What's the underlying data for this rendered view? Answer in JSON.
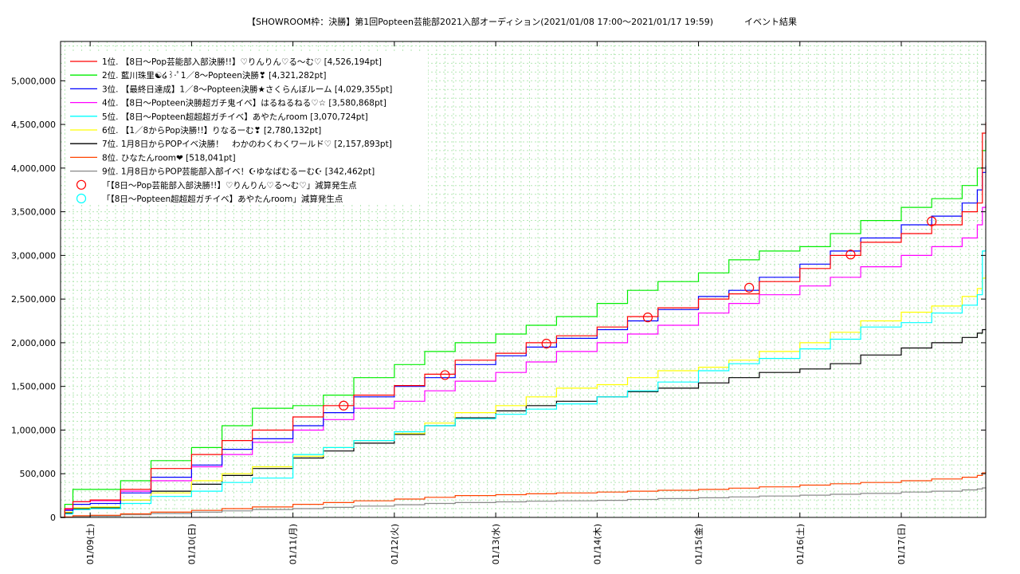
{
  "chart_data": {
    "type": "line",
    "title": "【SHOWROOM枠：決勝】第1回Popteen芸能部2021入部オーディション(2021/01/08 17:00～2021/01/17 19:59)",
    "title_suffix": "イベント結果",
    "xlabel": "",
    "ylabel": "",
    "ylim": [
      0,
      5450000
    ],
    "y_ticks": [
      "0",
      "500,000",
      "1,000,000",
      "1,500,000",
      "2,000,000",
      "2,500,000",
      "3,000,000",
      "3,500,000",
      "4,000,000",
      "4,500,000",
      "5,000,000"
    ],
    "y_tick_values": [
      0,
      500000,
      1000000,
      1500000,
      2000000,
      2500000,
      3000000,
      3500000,
      4000000,
      4500000,
      5000000
    ],
    "x_range_days": [
      8.708,
      17.833
    ],
    "x_ticks": [
      "01/09(土)",
      "01/10(日)",
      "01/11(月)",
      "01/12(火)",
      "01/13(水)",
      "01/14(木)",
      "01/15(金)",
      "01/16(土)",
      "01/17(日)"
    ],
    "x_tick_days": [
      9.0,
      10.0,
      11.0,
      12.0,
      13.0,
      14.0,
      15.0,
      16.0,
      17.0
    ],
    "grid": true,
    "legend_position": "top-left",
    "series": [
      {
        "name": "1位. 【8日～Pop芸能部入部決勝!!】♡りんりん♡る～む♡ [4,526,194pt]",
        "color": "#ff0000",
        "x": [
          8.708,
          8.75,
          8.83,
          9.0,
          9.3,
          9.6,
          10.0,
          10.3,
          10.6,
          11.0,
          11.3,
          11.6,
          12.0,
          12.3,
          12.6,
          13.0,
          13.3,
          13.6,
          14.0,
          14.3,
          14.6,
          15.0,
          15.3,
          15.6,
          16.0,
          16.3,
          16.6,
          17.0,
          17.3,
          17.6,
          17.75,
          17.8,
          17.833
        ],
        "values": [
          0,
          100000,
          180000,
          200000,
          320000,
          560000,
          720000,
          880000,
          1000000,
          1150000,
          1280000,
          1400000,
          1510000,
          1640000,
          1800000,
          1880000,
          2000000,
          2080000,
          2180000,
          2300000,
          2400000,
          2500000,
          2560000,
          2700000,
          2850000,
          3000000,
          3150000,
          3250000,
          3350000,
          3500000,
          3600000,
          4400000,
          4526194
        ]
      },
      {
        "name": "2位. 藍川珠里☯໒꒱·ﾟ1／8～Popteen決勝❣ [4,321,282pt]",
        "color": "#00ee00",
        "x": [
          8.708,
          8.75,
          8.83,
          9.0,
          9.3,
          9.6,
          10.0,
          10.3,
          10.6,
          11.0,
          11.3,
          11.6,
          12.0,
          12.3,
          12.6,
          13.0,
          13.3,
          13.6,
          14.0,
          14.3,
          14.6,
          15.0,
          15.3,
          15.6,
          16.0,
          16.3,
          16.6,
          17.0,
          17.3,
          17.6,
          17.75,
          17.8,
          17.833
        ],
        "values": [
          0,
          150000,
          320000,
          320000,
          420000,
          650000,
          800000,
          1050000,
          1250000,
          1280000,
          1400000,
          1600000,
          1750000,
          1900000,
          2000000,
          2100000,
          2200000,
          2300000,
          2450000,
          2600000,
          2700000,
          2800000,
          2950000,
          3050000,
          3100000,
          3250000,
          3400000,
          3550000,
          3650000,
          3800000,
          4000000,
          4200000,
          4321282
        ]
      },
      {
        "name": "3位. 【最終日達成】1／8～Popteen決勝★さくらんぼルーム [4,029,355pt]",
        "color": "#0000ff",
        "x": [
          8.708,
          8.75,
          8.83,
          9.0,
          9.3,
          9.6,
          10.0,
          10.3,
          10.6,
          11.0,
          11.3,
          11.6,
          12.0,
          12.3,
          12.6,
          13.0,
          13.3,
          13.6,
          14.0,
          14.3,
          14.6,
          15.0,
          15.3,
          15.6,
          16.0,
          16.3,
          16.6,
          17.0,
          17.3,
          17.6,
          17.75,
          17.8,
          17.833
        ],
        "values": [
          0,
          80000,
          150000,
          160000,
          280000,
          460000,
          600000,
          780000,
          900000,
          1050000,
          1200000,
          1380000,
          1500000,
          1600000,
          1750000,
          1850000,
          1950000,
          2050000,
          2150000,
          2250000,
          2380000,
          2530000,
          2600000,
          2750000,
          2900000,
          3050000,
          3200000,
          3350000,
          3450000,
          3600000,
          3750000,
          3950000,
          4029355
        ]
      },
      {
        "name": "4位. 【8日～Popteen決勝超ガチ鬼イベ】はるねるねる♡☆ [3,580,868pt]",
        "color": "#ff00ff",
        "x": [
          8.708,
          8.75,
          8.83,
          9.0,
          9.3,
          9.6,
          10.0,
          10.3,
          10.6,
          11.0,
          11.3,
          11.6,
          12.0,
          12.3,
          12.6,
          13.0,
          13.3,
          13.6,
          14.0,
          14.3,
          14.6,
          15.0,
          15.3,
          15.6,
          16.0,
          16.3,
          16.6,
          17.0,
          17.3,
          17.6,
          17.75,
          17.8,
          17.833
        ],
        "values": [
          0,
          90000,
          180000,
          190000,
          300000,
          420000,
          580000,
          720000,
          860000,
          1000000,
          1120000,
          1250000,
          1330000,
          1450000,
          1560000,
          1660000,
          1780000,
          1900000,
          2000000,
          2100000,
          2200000,
          2340000,
          2450000,
          2550000,
          2650000,
          2750000,
          2870000,
          3000000,
          3100000,
          3200000,
          3350000,
          3550000,
          3580868
        ]
      },
      {
        "name": "5位. 【8日～Popteen超超超ガチイベ】あやたんroom [3,070,724pt]",
        "color": "#00ffff",
        "x": [
          8.708,
          8.75,
          8.83,
          9.0,
          9.3,
          9.6,
          10.0,
          10.3,
          10.6,
          11.0,
          11.3,
          11.6,
          12.0,
          12.3,
          12.6,
          13.0,
          13.3,
          13.6,
          14.0,
          14.3,
          14.6,
          15.0,
          15.3,
          15.6,
          16.0,
          16.3,
          16.6,
          17.0,
          17.3,
          17.6,
          17.75,
          17.8,
          17.833
        ],
        "values": [
          0,
          40000,
          90000,
          100000,
          160000,
          240000,
          300000,
          400000,
          450000,
          720000,
          800000,
          880000,
          980000,
          1050000,
          1130000,
          1180000,
          1240000,
          1300000,
          1380000,
          1450000,
          1550000,
          1680000,
          1760000,
          1820000,
          1930000,
          2040000,
          2180000,
          2230000,
          2340000,
          2430000,
          2550000,
          3050000,
          3070724
        ]
      },
      {
        "name": "6位. 【1／8からPop決勝!!】りなるーむ❣ [2,780,132pt]",
        "color": "#ffff00",
        "x": [
          8.708,
          8.75,
          8.83,
          9.0,
          9.3,
          9.6,
          10.0,
          10.3,
          10.6,
          11.0,
          11.3,
          11.6,
          12.0,
          12.3,
          12.6,
          13.0,
          13.3,
          13.6,
          14.0,
          14.3,
          14.6,
          15.0,
          15.3,
          15.6,
          16.0,
          16.3,
          16.6,
          17.0,
          17.3,
          17.6,
          17.75,
          17.8,
          17.833
        ],
        "values": [
          0,
          60000,
          110000,
          120000,
          200000,
          280000,
          420000,
          500000,
          580000,
          700000,
          800000,
          880000,
          960000,
          1080000,
          1200000,
          1280000,
          1380000,
          1480000,
          1520000,
          1600000,
          1680000,
          1720000,
          1800000,
          1900000,
          2000000,
          2120000,
          2250000,
          2350000,
          2420000,
          2530000,
          2620000,
          2740000,
          2780132
        ]
      },
      {
        "name": "7位. 1月8日からPOPイベ決勝！　わかのわくわくワールド♡ [2,157,893pt]",
        "color": "#000000",
        "x": [
          8.708,
          8.75,
          8.83,
          9.0,
          9.3,
          9.6,
          10.0,
          10.3,
          10.6,
          11.0,
          11.3,
          11.6,
          12.0,
          12.3,
          12.6,
          13.0,
          13.3,
          13.6,
          14.0,
          14.3,
          14.6,
          15.0,
          15.3,
          15.6,
          16.0,
          16.3,
          16.6,
          17.0,
          17.3,
          17.6,
          17.75,
          17.8,
          17.833
        ],
        "values": [
          0,
          50000,
          100000,
          110000,
          200000,
          300000,
          380000,
          480000,
          560000,
          680000,
          760000,
          850000,
          950000,
          1050000,
          1140000,
          1220000,
          1280000,
          1330000,
          1380000,
          1440000,
          1480000,
          1540000,
          1600000,
          1660000,
          1700000,
          1760000,
          1860000,
          1940000,
          2000000,
          2060000,
          2110000,
          2150000,
          2157893
        ]
      },
      {
        "name": "8位. ひなたんroom❤ [518,041pt]",
        "color": "#ff4400",
        "x": [
          8.708,
          8.75,
          8.83,
          9.0,
          9.3,
          9.6,
          10.0,
          10.3,
          10.6,
          11.0,
          11.3,
          11.6,
          12.0,
          12.3,
          12.6,
          13.0,
          13.3,
          13.6,
          14.0,
          14.3,
          14.6,
          15.0,
          15.3,
          15.6,
          16.0,
          16.3,
          16.6,
          17.0,
          17.3,
          17.6,
          17.75,
          17.8,
          17.833
        ],
        "values": [
          0,
          5000,
          20000,
          25000,
          40000,
          60000,
          80000,
          100000,
          120000,
          150000,
          170000,
          190000,
          210000,
          230000,
          250000,
          260000,
          270000,
          280000,
          290000,
          300000,
          310000,
          320000,
          335000,
          350000,
          370000,
          385000,
          400000,
          420000,
          440000,
          460000,
          480000,
          510000,
          518041
        ]
      },
      {
        "name": "9位. 1月8日からPOP芸能部入部イベ！☪ゆなばむるーむ☪ [342,462pt]",
        "color": "#888888",
        "x": [
          8.708,
          8.75,
          8.83,
          9.0,
          9.3,
          9.6,
          10.0,
          10.3,
          10.6,
          11.0,
          11.3,
          11.6,
          12.0,
          12.3,
          12.6,
          13.0,
          13.3,
          13.6,
          14.0,
          14.3,
          14.6,
          15.0,
          15.3,
          15.6,
          16.0,
          16.3,
          16.6,
          17.0,
          17.3,
          17.6,
          17.75,
          17.8,
          17.833
        ],
        "values": [
          0,
          3000,
          10000,
          15000,
          30000,
          45000,
          60000,
          75000,
          90000,
          100000,
          115000,
          130000,
          145000,
          160000,
          170000,
          178000,
          185000,
          190000,
          195000,
          205000,
          215000,
          225000,
          235000,
          245000,
          255000,
          265000,
          275000,
          290000,
          300000,
          315000,
          325000,
          338000,
          342462
        ]
      }
    ],
    "markers": [
      {
        "name": "「【8日～Pop芸能部入部決勝!!】♡りんりん♡る～む♡」減算発生点",
        "color": "#ff0000",
        "x": [
          11.5,
          12.5,
          13.5,
          14.5,
          15.5,
          16.5,
          17.3
        ],
        "values": [
          1280000,
          1630000,
          1990000,
          2290000,
          2630000,
          3010000,
          3390000
        ]
      },
      {
        "name": "「【8日～Popteen超超超ガチイベ】あやたんroom」減算発生点",
        "color": "#00ffff",
        "x": [],
        "values": []
      }
    ]
  }
}
